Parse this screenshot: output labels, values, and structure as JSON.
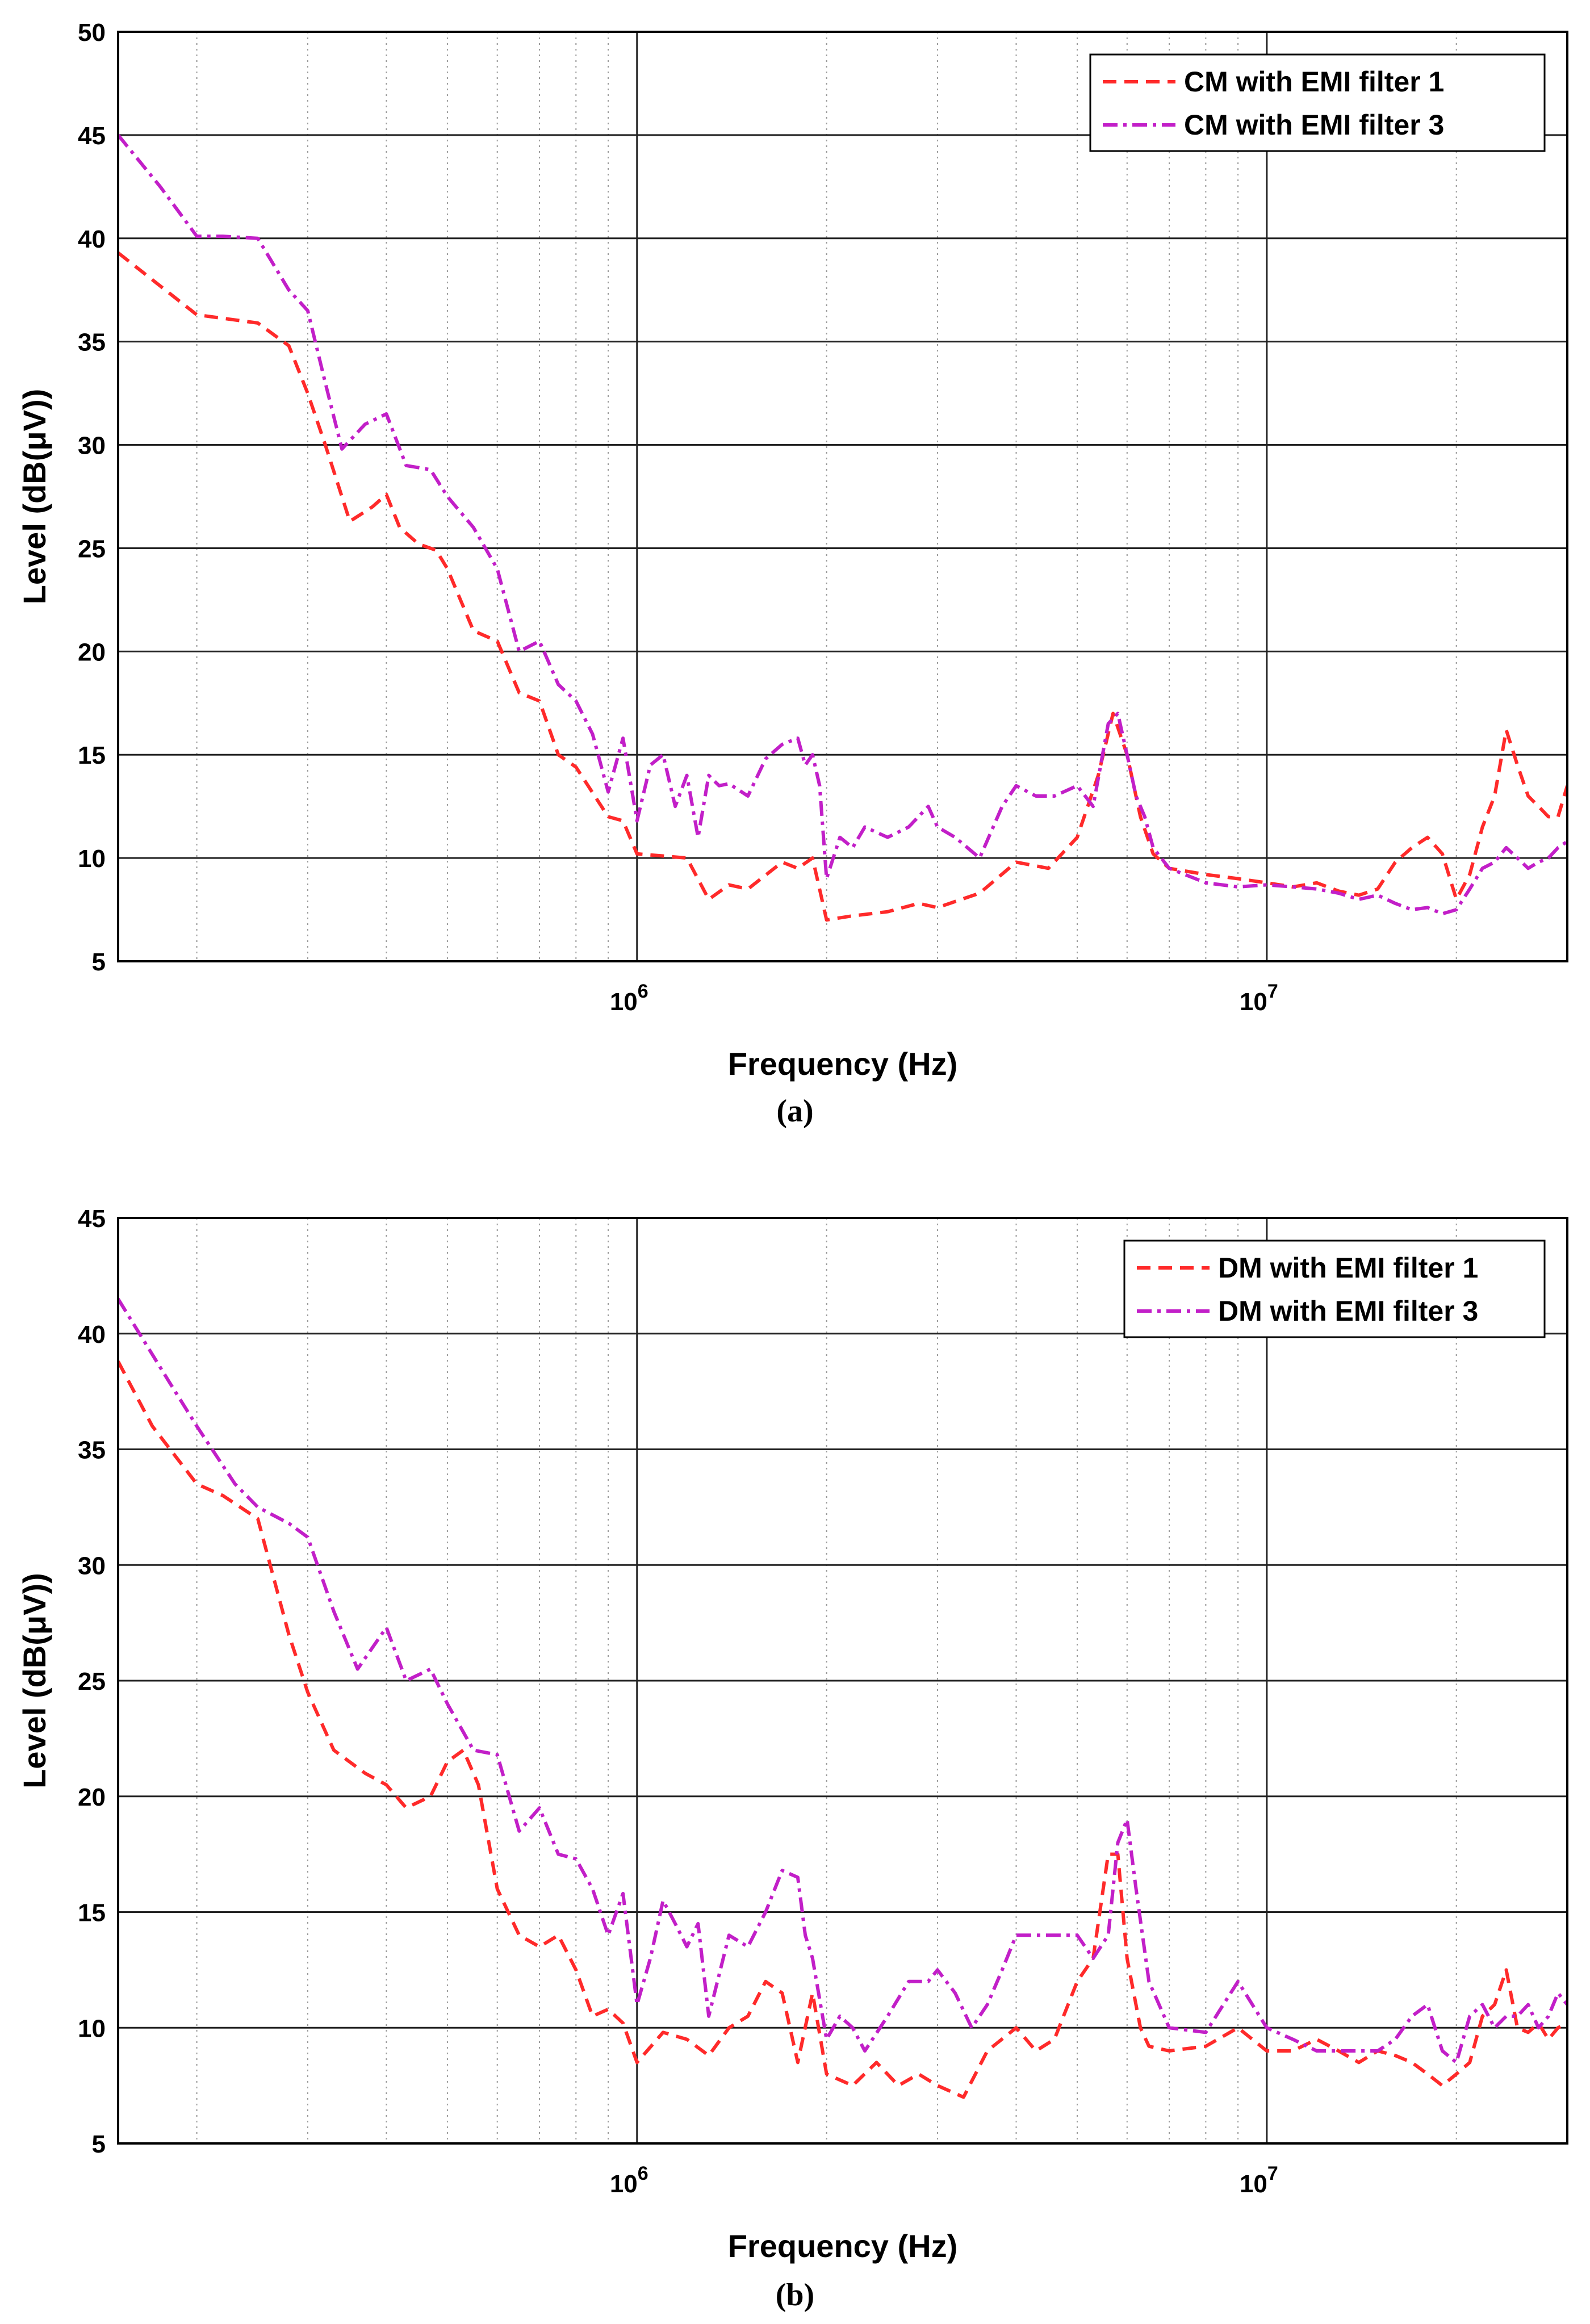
{
  "chart_data": [
    {
      "panel_label": "(a)",
      "type": "line",
      "xscale": "log",
      "xlabel": "Frequency (Hz)",
      "ylabel": "Level (dB(μV))",
      "xlim": [
        150000,
        30000000
      ],
      "ylim": [
        5,
        50
      ],
      "yticks": [
        5,
        10,
        15,
        20,
        25,
        30,
        35,
        40,
        45,
        50
      ],
      "xticks_major": [
        {
          "value": 1000000,
          "base": "10",
          "exp": "6"
        },
        {
          "value": 10000000,
          "base": "10",
          "exp": "7"
        }
      ],
      "grid": true,
      "legend_position": "top-right",
      "series": [
        {
          "name": "CM with EMI filter 1",
          "color": "#ff2a2a",
          "style": "dashed",
          "x": [
            150000,
            180000,
            200000,
            250000,
            280000,
            300000,
            320000,
            350000,
            380000,
            400000,
            420000,
            450000,
            480000,
            500000,
            550000,
            600000,
            650000,
            700000,
            750000,
            800000,
            900000,
            950000,
            1000000,
            1100000,
            1200000,
            1300000,
            1400000,
            1500000,
            1700000,
            1800000,
            1900000,
            2000000,
            2200000,
            2500000,
            2800000,
            3000000,
            3500000,
            4000000,
            4500000,
            5000000,
            5400000,
            5700000,
            6000000,
            6300000,
            6600000,
            7000000,
            8000000,
            9000000,
            10000000,
            11000000,
            12000000,
            13000000,
            14000000,
            15000000,
            16000000,
            17000000,
            18000000,
            19000000,
            20000000,
            21000000,
            22000000,
            23000000,
            24000000,
            25000000,
            26000000,
            27000000,
            28000000,
            29000000,
            30000000
          ],
          "y": [
            39.3,
            37.4,
            36.3,
            35.9,
            34.8,
            32.5,
            30.0,
            26.3,
            27.0,
            27.6,
            26.0,
            25.2,
            24.9,
            24.0,
            21.0,
            20.5,
            18.0,
            17.6,
            15.0,
            14.4,
            12.0,
            11.8,
            10.2,
            10.1,
            10.0,
            8.0,
            8.7,
            8.5,
            9.8,
            9.5,
            10.0,
            7.0,
            7.2,
            7.4,
            7.8,
            7.6,
            8.3,
            9.8,
            9.5,
            11.0,
            14.0,
            17.0,
            15.0,
            12.0,
            10.2,
            9.5,
            9.2,
            9.0,
            8.8,
            8.6,
            8.8,
            8.4,
            8.2,
            8.5,
            9.8,
            10.5,
            11.0,
            10.2,
            8.0,
            9.2,
            11.5,
            13.0,
            16.2,
            14.5,
            13.0,
            12.5,
            12.0,
            12.0,
            13.5
          ]
        },
        {
          "name": "CM with EMI filter 3",
          "color": "#c21fc8",
          "style": "dashdot",
          "x": [
            150000,
            175000,
            200000,
            220000,
            250000,
            280000,
            300000,
            320000,
            340000,
            370000,
            400000,
            430000,
            470000,
            500000,
            550000,
            600000,
            650000,
            700000,
            750000,
            800000,
            850000,
            900000,
            950000,
            1000000,
            1050000,
            1100000,
            1150000,
            1200000,
            1250000,
            1300000,
            1350000,
            1400000,
            1500000,
            1600000,
            1700000,
            1800000,
            1850000,
            1900000,
            1950000,
            2000000,
            2100000,
            2200000,
            2300000,
            2500000,
            2700000,
            2900000,
            3000000,
            3200000,
            3500000,
            3800000,
            4000000,
            4300000,
            4600000,
            5000000,
            5300000,
            5600000,
            5800000,
            6000000,
            6200000,
            6400000,
            6600000,
            7000000,
            8000000,
            9000000,
            10000000,
            11000000,
            12000000,
            13000000,
            14000000,
            15000000,
            16000000,
            17000000,
            18000000,
            19000000,
            20000000,
            21000000,
            22000000,
            23000000,
            24000000,
            25000000,
            26000000,
            27000000,
            28000000,
            29000000,
            30000000
          ],
          "y": [
            45,
            42.5,
            40.1,
            40.1,
            40.0,
            37.5,
            36.5,
            33.0,
            29.8,
            31.0,
            31.5,
            29.0,
            28.8,
            27.5,
            26.0,
            24.0,
            20.0,
            20.5,
            18.4,
            17.6,
            16.0,
            13.2,
            15.8,
            11.8,
            14.5,
            15.0,
            12.5,
            14.0,
            11.0,
            14.0,
            13.5,
            13.6,
            13.0,
            14.8,
            15.5,
            15.8,
            14.5,
            15.0,
            13.5,
            9.0,
            11.0,
            10.5,
            11.5,
            11.0,
            11.5,
            12.5,
            11.5,
            11.0,
            10.0,
            12.5,
            13.5,
            13.0,
            13.0,
            13.5,
            12.5,
            16.5,
            17.0,
            15.0,
            13.0,
            12.0,
            10.5,
            9.5,
            8.8,
            8.6,
            8.7,
            8.6,
            8.5,
            8.3,
            8.0,
            8.2,
            7.8,
            7.5,
            7.6,
            7.3,
            7.5,
            8.5,
            9.5,
            9.8,
            10.5,
            10.0,
            9.5,
            9.8,
            10.0,
            10.5,
            10.8
          ]
        }
      ]
    },
    {
      "panel_label": "(b)",
      "type": "line",
      "xscale": "log",
      "xlabel": "Frequency (Hz)",
      "ylabel": "Level (dB(μV))",
      "xlim": [
        150000,
        30000000
      ],
      "ylim": [
        5,
        45
      ],
      "yticks": [
        5,
        10,
        15,
        20,
        25,
        30,
        35,
        40,
        45
      ],
      "xticks_major": [
        {
          "value": 1000000,
          "base": "10",
          "exp": "6"
        },
        {
          "value": 10000000,
          "base": "10",
          "exp": "7"
        }
      ],
      "grid": true,
      "legend_position": "top-right",
      "series": [
        {
          "name": "DM with EMI filter 1",
          "color": "#ff2a2a",
          "style": "dashed",
          "x": [
            150000,
            170000,
            200000,
            220000,
            250000,
            280000,
            300000,
            330000,
            370000,
            400000,
            430000,
            470000,
            500000,
            530000,
            560000,
            600000,
            650000,
            700000,
            750000,
            800000,
            850000,
            900000,
            950000,
            1000000,
            1100000,
            1200000,
            1300000,
            1400000,
            1500000,
            1600000,
            1700000,
            1800000,
            1900000,
            2000000,
            2200000,
            2400000,
            2600000,
            2800000,
            3000000,
            3300000,
            3600000,
            4000000,
            4300000,
            4600000,
            5000000,
            5300000,
            5600000,
            5800000,
            6000000,
            6300000,
            6500000,
            7000000,
            8000000,
            9000000,
            10000000,
            11000000,
            12000000,
            13000000,
            14000000,
            15000000,
            16000000,
            17000000,
            18000000,
            19000000,
            20000000,
            21000000,
            22000000,
            23000000,
            24000000,
            25000000,
            26000000,
            27000000,
            28000000,
            29000000,
            30000000
          ],
          "y": [
            38.8,
            36.0,
            33.5,
            33.0,
            32.0,
            27.0,
            24.5,
            22.0,
            21.0,
            20.5,
            19.5,
            20.0,
            21.5,
            22.0,
            20.5,
            16.0,
            14.0,
            13.5,
            14.0,
            12.5,
            10.5,
            10.8,
            10.2,
            8.5,
            9.8,
            9.5,
            8.8,
            10.0,
            10.5,
            12.0,
            11.5,
            8.5,
            11.5,
            8.0,
            7.5,
            8.5,
            7.5,
            8.0,
            7.5,
            7.0,
            9.0,
            10.0,
            9.0,
            9.5,
            12.0,
            13.0,
            17.5,
            17.5,
            13.0,
            10.0,
            9.2,
            9.0,
            9.2,
            10.0,
            9.0,
            9.0,
            9.5,
            9.0,
            8.5,
            9.0,
            8.8,
            8.5,
            8.0,
            7.5,
            8.0,
            8.5,
            10.5,
            11.0,
            12.5,
            10.0,
            9.8,
            10.2,
            9.5,
            10.0,
            10.2
          ]
        },
        {
          "name": "DM with EMI filter 3",
          "color": "#c21fc8",
          "style": "dashdot",
          "x": [
            150000,
            180000,
            200000,
            230000,
            250000,
            280000,
            300000,
            330000,
            360000,
            400000,
            430000,
            470000,
            500000,
            550000,
            600000,
            650000,
            700000,
            750000,
            800000,
            850000,
            900000,
            950000,
            1000000,
            1050000,
            1100000,
            1150000,
            1200000,
            1250000,
            1300000,
            1400000,
            1500000,
            1600000,
            1700000,
            1800000,
            1850000,
            1900000,
            2000000,
            2100000,
            2200000,
            2300000,
            2500000,
            2700000,
            2900000,
            3000000,
            3200000,
            3400000,
            3600000,
            3800000,
            4000000,
            4300000,
            4600000,
            5000000,
            5300000,
            5600000,
            5800000,
            6000000,
            6200000,
            6500000,
            7000000,
            8000000,
            9000000,
            10000000,
            11000000,
            12000000,
            13000000,
            14000000,
            15000000,
            16000000,
            17000000,
            18000000,
            19000000,
            20000000,
            21000000,
            22000000,
            23000000,
            24000000,
            25000000,
            26000000,
            27000000,
            28000000,
            29000000,
            30000000
          ],
          "y": [
            41.5,
            38.0,
            36.0,
            33.5,
            32.5,
            31.8,
            31.2,
            28.0,
            25.5,
            27.3,
            25.0,
            25.5,
            24.0,
            22.0,
            21.8,
            18.5,
            19.5,
            17.5,
            17.3,
            16.0,
            14.0,
            15.8,
            11.0,
            13.0,
            15.5,
            14.5,
            13.5,
            14.5,
            10.5,
            14.0,
            13.5,
            15.0,
            16.8,
            16.5,
            14.0,
            13.0,
            9.5,
            10.5,
            10.0,
            9.0,
            10.5,
            12.0,
            12.0,
            12.5,
            11.5,
            10.0,
            11.0,
            12.5,
            14.0,
            14.0,
            14.0,
            14.0,
            13.0,
            14.0,
            18.0,
            19.0,
            16.0,
            12.0,
            10.0,
            9.8,
            12.0,
            10.0,
            9.5,
            9.0,
            9.0,
            9.0,
            9.0,
            9.5,
            10.5,
            11.0,
            9.0,
            8.5,
            10.5,
            11.0,
            10.0,
            10.5,
            10.5,
            11.0,
            10.0,
            10.5,
            11.5,
            11.0
          ]
        }
      ]
    }
  ]
}
